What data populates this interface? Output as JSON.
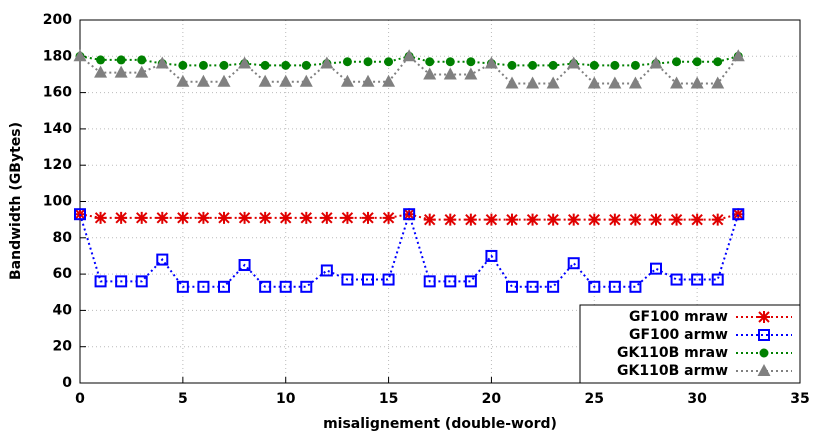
{
  "chart_data": {
    "type": "line",
    "xlabel": "misalignement (double-word)",
    "ylabel": "Bandwidth (GBytes)",
    "x": [
      0,
      1,
      2,
      3,
      4,
      5,
      6,
      7,
      8,
      9,
      10,
      11,
      12,
      13,
      14,
      15,
      16,
      17,
      18,
      19,
      20,
      21,
      22,
      23,
      24,
      25,
      26,
      27,
      28,
      29,
      30,
      31,
      32
    ],
    "xlim": [
      0,
      35
    ],
    "xticks": [
      0,
      5,
      10,
      15,
      20,
      25,
      30,
      35
    ],
    "ylim": [
      0,
      200
    ],
    "yticks": [
      0,
      20,
      40,
      60,
      80,
      100,
      120,
      140,
      160,
      180,
      200
    ],
    "grid": true,
    "legend": "lower right",
    "series": [
      {
        "name": "GF100 mraw",
        "color": "#e00000",
        "marker": "x",
        "values": [
          93,
          91,
          91,
          91,
          91,
          91,
          91,
          91,
          91,
          91,
          91,
          91,
          91,
          91,
          91,
          91,
          93,
          90,
          90,
          90,
          90,
          90,
          90,
          90,
          90,
          90,
          90,
          90,
          90,
          90,
          90,
          90,
          93
        ]
      },
      {
        "name": "GF100 armw",
        "color": "#0000ff",
        "marker": "square",
        "values": [
          93,
          56,
          56,
          56,
          68,
          53,
          53,
          53,
          65,
          53,
          53,
          53,
          62,
          57,
          57,
          57,
          93,
          56,
          56,
          56,
          70,
          53,
          53,
          53,
          66,
          53,
          53,
          53,
          63,
          57,
          57,
          57,
          93
        ]
      },
      {
        "name": "GK110B mraw",
        "color": "#008000",
        "marker": "circle",
        "values": [
          180,
          178,
          178,
          178,
          176,
          175,
          175,
          175,
          176,
          175,
          175,
          175,
          176,
          177,
          177,
          177,
          180,
          177,
          177,
          177,
          176,
          175,
          175,
          175,
          176,
          175,
          175,
          175,
          176,
          177,
          177,
          177,
          180
        ]
      },
      {
        "name": "GK110B armw",
        "color": "#808080",
        "marker": "triangle",
        "values": [
          180,
          171,
          171,
          171,
          176,
          166,
          166,
          166,
          176,
          166,
          166,
          166,
          176,
          166,
          166,
          166,
          180,
          170,
          170,
          170,
          176,
          165,
          165,
          165,
          176,
          165,
          165,
          165,
          176,
          165,
          165,
          165,
          180
        ]
      }
    ]
  }
}
